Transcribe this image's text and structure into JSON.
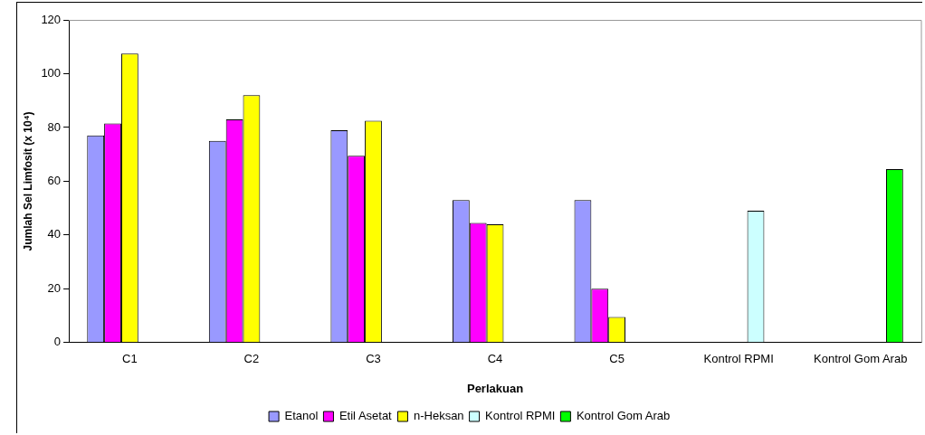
{
  "chart_data": {
    "type": "bar",
    "xlabel": "Perlakuan",
    "ylabel": "Jumlah Sel Limfosit (x 10⁴)",
    "categories": [
      "C1",
      "C2",
      "C3",
      "C4",
      "C5",
      "Kontrol RPMI",
      "Kontrol Gom Arab"
    ],
    "series": [
      {
        "name": "Etanol",
        "color": "#9999ff",
        "values": [
          77,
          75,
          79,
          53,
          53,
          null,
          null
        ]
      },
      {
        "name": "Etil Asetat",
        "color": "#ff00ff",
        "values": [
          81.5,
          83,
          69.5,
          44.5,
          20,
          null,
          null
        ]
      },
      {
        "name": "n-Heksan",
        "color": "#ffff00",
        "values": [
          107.5,
          92,
          82.5,
          44,
          9.5,
          null,
          null
        ]
      },
      {
        "name": "Kontrol RPMI",
        "color": "#ccffff",
        "values": [
          null,
          null,
          null,
          null,
          null,
          49,
          null
        ]
      },
      {
        "name": "Kontrol Gom Arab",
        "color": "#00ff00",
        "values": [
          null,
          null,
          null,
          null,
          null,
          null,
          64.5
        ]
      }
    ],
    "ylim": [
      0,
      120
    ],
    "yticks": [
      0,
      20,
      40,
      60,
      80,
      100,
      120
    ],
    "grid": false,
    "legend": "bottom"
  }
}
